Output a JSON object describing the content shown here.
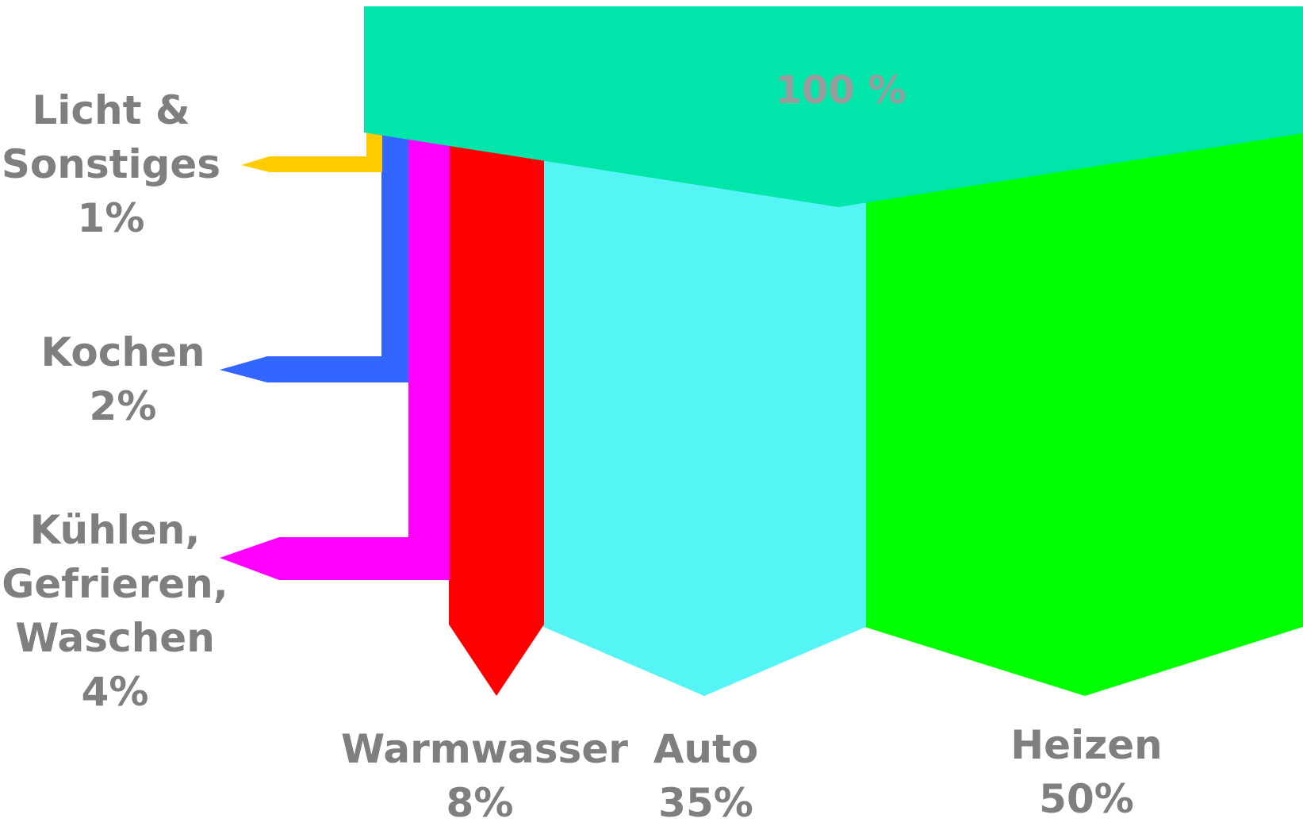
{
  "diagram": {
    "type": "sankey",
    "total_label": "100 %",
    "outputs": [
      {
        "id": "licht",
        "lines": [
          "Licht &",
          "Sonstiges",
          "1%"
        ],
        "value": 1,
        "color": "#ffcc00"
      },
      {
        "id": "kochen",
        "lines": [
          "Kochen",
          "2%"
        ],
        "value": 2,
        "color": "#3366ff"
      },
      {
        "id": "kuehlen",
        "lines": [
          "Kühlen,",
          "Gefrieren,",
          "Waschen",
          "4%"
        ],
        "value": 4,
        "color": "#ff00ff"
      },
      {
        "id": "warmwasser",
        "lines": [
          "Warmwasser",
          "8%"
        ],
        "value": 8,
        "color": "#ff0000"
      },
      {
        "id": "auto",
        "lines": [
          "Auto",
          "35%"
        ],
        "value": 35,
        "color": "#55f5f5"
      },
      {
        "id": "heizen",
        "lines": [
          "Heizen",
          "50%"
        ],
        "value": 50,
        "color": "#00ff00"
      }
    ],
    "source_color": "#00e5aa",
    "label_color": "#7f7f7f"
  }
}
